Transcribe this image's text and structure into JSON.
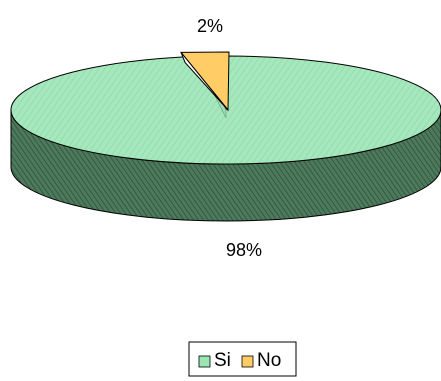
{
  "chart_data": {
    "type": "pie",
    "style": "3d",
    "slices": [
      {
        "name": "Si",
        "value": 98,
        "label": "98%",
        "color": "#99e6b3"
      },
      {
        "name": "No",
        "value": 2,
        "label": "2%",
        "color": "#ffcc66"
      }
    ],
    "legend": {
      "placement": "bottom-center",
      "entries": [
        "Si",
        "No"
      ]
    },
    "title": "",
    "side_color_si": "#3d6b4e",
    "side_color_no": "#b38f3a"
  }
}
